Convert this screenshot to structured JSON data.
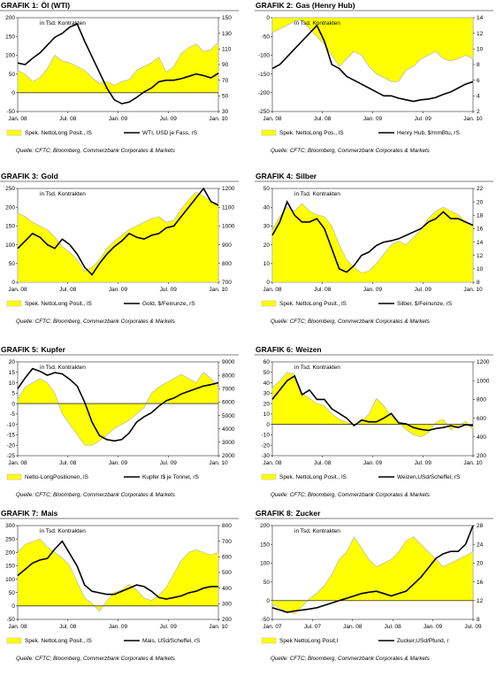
{
  "source": "Quelle: CFTC; Bloomberg, Commerzbank Corporates & Markets",
  "unit_label": "in Tsd. Kontrakten",
  "chart_data": [
    {
      "type": "area",
      "title": "GRAFIK 1: Öl (WTI)",
      "title_prefix": "GRAFIK 1:",
      "title_name": "Öl (WTI)",
      "x_ticks": [
        "Jan. 08",
        "Jul. 08",
        "Jan. 09",
        "Jul. 09",
        "Jan. 10"
      ],
      "y_left_ticks": [
        200,
        150,
        100,
        50,
        0,
        -50
      ],
      "y_left_lim": [
        -50,
        200
      ],
      "y_right_ticks": [
        150,
        130,
        110,
        90,
        70,
        50,
        30
      ],
      "y_right_lim": [
        30,
        150
      ],
      "series": [
        {
          "name": "Spek. NettoLong Posit., lS",
          "axis": "left",
          "style": "area",
          "values": [
            60,
            50,
            30,
            40,
            65,
            100,
            85,
            80,
            70,
            60,
            40,
            25,
            30,
            20,
            30,
            35,
            60,
            70,
            80,
            95,
            55,
            70,
            105,
            120,
            130,
            110,
            115,
            135
          ]
        },
        {
          "name": "WTI, USD je Fass, rS",
          "axis": "right",
          "style": "line",
          "values": [
            92,
            90,
            98,
            105,
            115,
            125,
            130,
            138,
            142,
            120,
            100,
            80,
            60,
            45,
            40,
            42,
            48,
            55,
            60,
            68,
            70,
            70,
            72,
            75,
            78,
            76,
            73,
            79
          ]
        }
      ]
    },
    {
      "type": "area",
      "title": "GRAFIK 2: Gas (Henry Hub)",
      "title_prefix": "GRAFIK 2:",
      "title_name": "Gas (Henry Hub)",
      "x_ticks": [
        "Jan. 08",
        "Jul. 08",
        "Jan. 09",
        "Jul. 09",
        "Jan. 10"
      ],
      "y_left_ticks": [
        0,
        -50,
        -100,
        -150,
        -200,
        -250
      ],
      "y_left_lim": [
        -250,
        0
      ],
      "y_right_ticks": [
        14,
        12,
        10,
        8,
        6,
        4,
        2
      ],
      "y_right_lim": [
        2,
        14
      ],
      "series": [
        {
          "name": "Spek. NettoLong Pos., lS",
          "axis": "left",
          "style": "area",
          "values": [
            -40,
            -30,
            -20,
            -10,
            -5,
            -30,
            -50,
            -70,
            -100,
            -130,
            -110,
            -90,
            -100,
            -130,
            -150,
            -160,
            -170,
            -170,
            -140,
            -130,
            -110,
            -100,
            -90,
            -110,
            -115,
            -110,
            -100,
            -110
          ]
        },
        {
          "name": "Henry Hub, $/mmBtu, rS",
          "axis": "right",
          "style": "line",
          "values": [
            7.5,
            8,
            9,
            10,
            11,
            12,
            13,
            11,
            8,
            7.5,
            6.5,
            6,
            5.5,
            5,
            4.5,
            4,
            4,
            3.7,
            3.5,
            3.3,
            3.5,
            3.6,
            3.8,
            4.2,
            4.5,
            5,
            5.5,
            5.8
          ]
        }
      ]
    },
    {
      "type": "area",
      "title": "GRAFIK 3: Gold",
      "title_prefix": "GRAFIK 3:",
      "title_name": "Gold",
      "x_ticks": [
        "Jan. 08",
        "Jul. 08",
        "Jan. 09",
        "Jul. 09",
        "Jan. 10"
      ],
      "y_left_ticks": [
        250,
        200,
        150,
        100,
        50,
        0
      ],
      "y_left_lim": [
        0,
        250
      ],
      "y_right_ticks": [
        1200,
        1100,
        1000,
        900,
        800,
        700
      ],
      "y_right_lim": [
        700,
        1200
      ],
      "series": [
        {
          "name": "Spek. NettoLong Posit., lS",
          "axis": "left",
          "style": "area",
          "values": [
            185,
            175,
            160,
            150,
            140,
            120,
            95,
            80,
            60,
            30,
            40,
            60,
            90,
            110,
            125,
            140,
            150,
            160,
            170,
            175,
            160,
            165,
            195,
            220,
            240,
            230,
            215,
            210
          ]
        },
        {
          "name": "Gold, $/Feinunze, rS",
          "axis": "right",
          "style": "line",
          "values": [
            880,
            920,
            960,
            940,
            900,
            880,
            930,
            900,
            850,
            780,
            740,
            800,
            850,
            890,
            920,
            960,
            940,
            930,
            950,
            960,
            990,
            1000,
            1050,
            1100,
            1150,
            1200,
            1130,
            1110
          ]
        }
      ]
    },
    {
      "type": "area",
      "title": "GRAFIK 4: Silber",
      "title_prefix": "GRAFIK 4:",
      "title_name": "Silber",
      "x_ticks": [
        "Jan. 08",
        "Jul. 08",
        "Jan. 09",
        "Jul. 09",
        "Jan. 10"
      ],
      "y_left_ticks": [
        50,
        40,
        30,
        20,
        10,
        0
      ],
      "y_left_lim": [
        0,
        50
      ],
      "y_right_ticks": [
        22,
        20,
        18,
        16,
        14,
        12,
        10,
        8
      ],
      "y_right_lim": [
        8,
        22
      ],
      "series": [
        {
          "name": "Spek. NettoLong Posit., lS",
          "axis": "left",
          "style": "area",
          "values": [
            28,
            35,
            40,
            38,
            42,
            38,
            36,
            35,
            30,
            20,
            12,
            8,
            5,
            6,
            10,
            15,
            20,
            22,
            20,
            24,
            28,
            34,
            38,
            40,
            38,
            36,
            32,
            30
          ]
        },
        {
          "name": "Silber, $/Feinunze, rS",
          "axis": "right",
          "style": "line",
          "values": [
            15,
            17,
            20,
            18,
            17,
            17,
            17.5,
            16,
            13,
            10,
            9.5,
            10.5,
            12,
            12.5,
            13.5,
            14,
            14.2,
            14.5,
            15,
            15.5,
            16,
            17,
            17.5,
            18.5,
            17.5,
            17.5,
            17,
            16.5
          ]
        }
      ]
    },
    {
      "type": "area",
      "title": "GRAFIK 5: Kupfer",
      "title_prefix": "GRAFIK 5:",
      "title_name": "Kupfer",
      "x_ticks": [
        "Jan. 08",
        "Jul. 08",
        "Jan. 09",
        "Jul. 09",
        "Jan. 10"
      ],
      "y_left_ticks": [
        20,
        15,
        10,
        5,
        0,
        -5,
        -10,
        -15,
        -20,
        -25
      ],
      "y_left_lim": [
        -25,
        20
      ],
      "y_right_ticks": [
        9000,
        8000,
        7000,
        6000,
        5000,
        4000,
        3000,
        2000
      ],
      "y_right_lim": [
        2000,
        9000
      ],
      "series": [
        {
          "name": "Netto-LongPositionen, lS",
          "axis": "left",
          "style": "area",
          "values": [
            2,
            8,
            10,
            12,
            10,
            5,
            -5,
            -10,
            -15,
            -20,
            -20,
            -18,
            -15,
            -12,
            -10,
            -8,
            -5,
            -2,
            5,
            8,
            10,
            12,
            14,
            12,
            10,
            15,
            12,
            8
          ]
        },
        {
          "name": "Kupfer l$ je Tonnel, rS",
          "axis": "right",
          "style": "line",
          "values": [
            7000,
            7800,
            8500,
            8300,
            8000,
            8200,
            8100,
            7700,
            7200,
            6000,
            4500,
            3500,
            3200,
            3100,
            3200,
            3700,
            4500,
            4900,
            5200,
            5700,
            6100,
            6300,
            6600,
            6800,
            7000,
            7200,
            7300,
            7450
          ]
        }
      ]
    },
    {
      "type": "area",
      "title": "GRAFIK 6: Weizen",
      "title_prefix": "GRAFIK 6:",
      "title_name": "Weizen",
      "x_ticks": [
        "Jan. 08",
        "Jul. 08",
        "Jan. 09",
        "Jul. 09",
        "Jan. 10"
      ],
      "y_left_ticks": [
        60,
        50,
        40,
        30,
        20,
        10,
        0,
        -10,
        -20,
        -30
      ],
      "y_left_lim": [
        -30,
        60
      ],
      "y_right_ticks": [
        1200,
        1000,
        800,
        600,
        400,
        200
      ],
      "y_right_lim": [
        200,
        1200
      ],
      "series": [
        {
          "name": "Spek. NettoLong Posit., lS",
          "axis": "left",
          "style": "area",
          "values": [
            35,
            42,
            50,
            48,
            30,
            25,
            20,
            18,
            10,
            5,
            2,
            0,
            3,
            10,
            25,
            18,
            8,
            2,
            -5,
            -10,
            -12,
            -8,
            2,
            5,
            -5,
            -2,
            3,
            -5
          ]
        },
        {
          "name": "Weizen,USd/Scheffel, rS",
          "axis": "right",
          "style": "line",
          "values": [
            800,
            900,
            1000,
            1050,
            850,
            900,
            800,
            800,
            700,
            650,
            600,
            520,
            580,
            560,
            560,
            600,
            650,
            550,
            540,
            500,
            480,
            470,
            490,
            500,
            520,
            500,
            530,
            520
          ]
        }
      ]
    },
    {
      "type": "area",
      "title": "GRAFIK 7: Mais",
      "title_prefix": "GRAFIK 7:",
      "title_name": "Mais",
      "x_ticks": [
        "Jan. 08",
        "Jul. 08",
        "Jan. 09",
        "Jul. 09",
        "Jan. 10"
      ],
      "y_left_ticks": [
        300,
        250,
        200,
        150,
        100,
        50,
        0,
        -50
      ],
      "y_left_lim": [
        -50,
        300
      ],
      "y_right_ticks": [
        800,
        700,
        600,
        500,
        400,
        300,
        200
      ],
      "y_right_lim": [
        200,
        800
      ],
      "series": [
        {
          "name": "Spek. NettoLong Posit., lS",
          "axis": "left",
          "style": "area",
          "values": [
            200,
            230,
            240,
            250,
            220,
            200,
            180,
            150,
            90,
            30,
            10,
            -20,
            20,
            50,
            60,
            80,
            60,
            30,
            20,
            40,
            70,
            120,
            170,
            200,
            210,
            200,
            190,
            200
          ]
        },
        {
          "name": "Mais, USd/Scheffel, rS",
          "axis": "right",
          "style": "line",
          "values": [
            480,
            520,
            560,
            580,
            590,
            650,
            700,
            620,
            540,
            420,
            380,
            370,
            360,
            360,
            380,
            400,
            420,
            410,
            380,
            340,
            330,
            340,
            350,
            370,
            380,
            400,
            410,
            410
          ]
        }
      ]
    },
    {
      "type": "area",
      "title": "GRAFIK 8: Zucker",
      "title_prefix": "GRAFIK 8:",
      "title_name": "Zucker",
      "x_ticks": [
        "Jan. 07",
        "Jul. 07",
        "Jan. 08",
        "Jul. 08",
        "Jan. 09",
        "Jul. 09"
      ],
      "y_left_ticks": [
        200,
        150,
        100,
        50,
        0,
        -50
      ],
      "y_left_lim": [
        -50,
        200
      ],
      "y_right_ticks": [
        28,
        24,
        20,
        16,
        12,
        8
      ],
      "y_right_lim": [
        8,
        28
      ],
      "series": [
        {
          "name": "Spek NettoLong Posit,l",
          "axis": "left",
          "style": "area",
          "values": [
            -10,
            -20,
            -30,
            -35,
            -15,
            5,
            20,
            40,
            70,
            110,
            130,
            170,
            140,
            110,
            90,
            100,
            110,
            130,
            160,
            170,
            150,
            130,
            110,
            90,
            100,
            110,
            120,
            130
          ]
        },
        {
          "name": "Zucker,USd/Pfund, r",
          "axis": "right",
          "style": "line",
          "values": [
            10.5,
            10,
            9.5,
            9.8,
            10,
            10.2,
            10.5,
            11,
            11.5,
            12,
            12.5,
            13,
            13.5,
            13.8,
            14,
            13.5,
            13,
            13.5,
            14,
            15.5,
            17,
            19,
            21,
            22,
            22.5,
            22.5,
            24,
            28
          ]
        }
      ]
    }
  ]
}
